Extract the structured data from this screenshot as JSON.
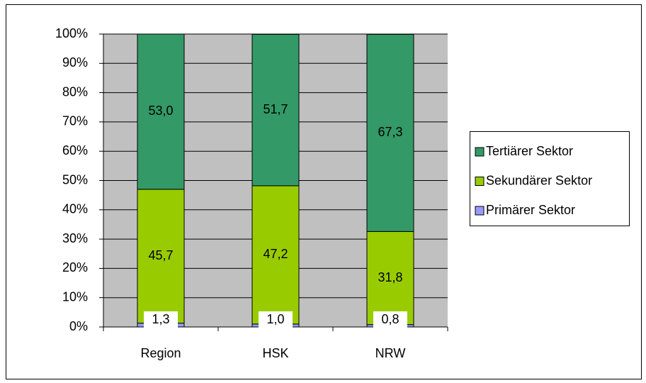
{
  "chart_data": {
    "type": "stacked_bar",
    "categories": [
      "Region",
      "HSK",
      "NRW"
    ],
    "series": [
      {
        "name": "Primärer Sektor",
        "color": "#9999ff",
        "values": [
          1.3,
          1.0,
          0.8
        ],
        "value_labels": [
          "1,3",
          "1,0",
          "0,8"
        ]
      },
      {
        "name": "Sekundärer Sektor",
        "color": "#99cc00",
        "values": [
          45.7,
          47.2,
          31.8
        ],
        "value_labels": [
          "45,7",
          "47,2",
          "31,8"
        ]
      },
      {
        "name": "Tertiärer Sektor",
        "color": "#339966",
        "values": [
          53.0,
          51.7,
          67.3
        ],
        "value_labels": [
          "53,0",
          "51,7",
          "67,3"
        ]
      }
    ],
    "ylim": [
      0,
      100
    ],
    "yticks": [
      {
        "value": 0,
        "label": "0%"
      },
      {
        "value": 10,
        "label": "10%"
      },
      {
        "value": 20,
        "label": "20%"
      },
      {
        "value": 30,
        "label": "30%"
      },
      {
        "value": 40,
        "label": "40%"
      },
      {
        "value": 50,
        "label": "50%"
      },
      {
        "value": 60,
        "label": "60%"
      },
      {
        "value": 70,
        "label": "70%"
      },
      {
        "value": 80,
        "label": "80%"
      },
      {
        "value": 90,
        "label": "90%"
      },
      {
        "value": 100,
        "label": "100%"
      }
    ],
    "grid": true,
    "plot_background": "#c0c0c0",
    "legend": "right"
  }
}
